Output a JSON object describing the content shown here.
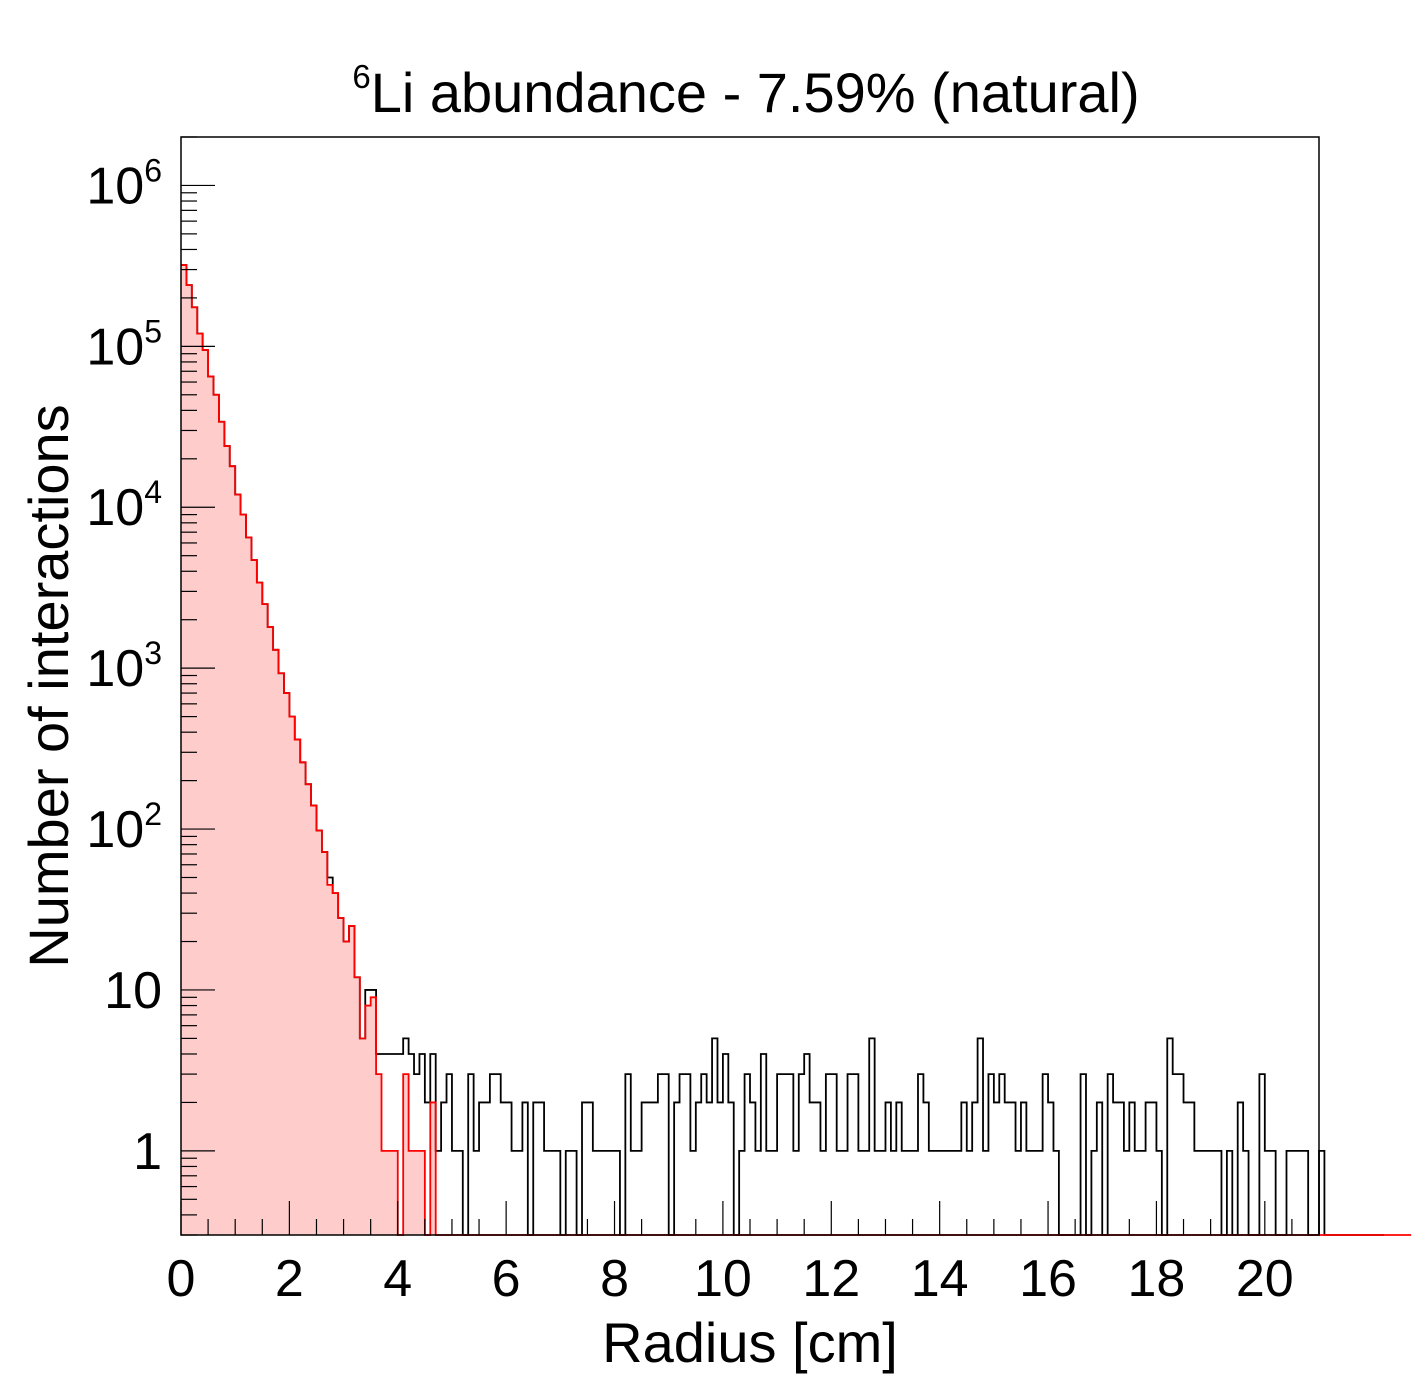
{
  "chart_data": {
    "type": "histogram",
    "title": {
      "superscript": "6",
      "text": "Li abundance - 7.59% (natural)"
    },
    "xlabel": "Radius [cm]",
    "ylabel": "Number of interactions",
    "xlim": [
      0,
      21
    ],
    "ylim": [
      0.3,
      2000000
    ],
    "yscale": "log",
    "bin_width": 0.1,
    "x_ticks": [
      {
        "value": 0,
        "label": "0"
      },
      {
        "value": 2,
        "label": "2"
      },
      {
        "value": 4,
        "label": "4"
      },
      {
        "value": 6,
        "label": "6"
      },
      {
        "value": 8,
        "label": "8"
      },
      {
        "value": 10,
        "label": "10"
      },
      {
        "value": 12,
        "label": "12"
      },
      {
        "value": 14,
        "label": "14"
      },
      {
        "value": 16,
        "label": "16"
      },
      {
        "value": 18,
        "label": "18"
      },
      {
        "value": 20,
        "label": "20"
      }
    ],
    "y_ticks": [
      {
        "value": 1,
        "base": "1",
        "exp": ""
      },
      {
        "value": 10,
        "base": "10",
        "exp": ""
      },
      {
        "value": 100,
        "base": "10",
        "exp": "2"
      },
      {
        "value": 1000,
        "base": "10",
        "exp": "3"
      },
      {
        "value": 10000,
        "base": "10",
        "exp": "4"
      },
      {
        "value": 100000,
        "base": "10",
        "exp": "5"
      },
      {
        "value": 1000000,
        "base": "10",
        "exp": "6"
      }
    ],
    "series": [
      {
        "color": "#000000",
        "fill": "none",
        "counts": [
          320000,
          240000,
          175000,
          120000,
          95000,
          65000,
          50000,
          34000,
          24000,
          18000,
          12000,
          9000,
          6500,
          4700,
          3400,
          2500,
          1800,
          1300,
          930,
          700,
          500,
          360,
          260,
          190,
          140,
          98,
          72,
          50,
          40,
          28,
          20,
          25,
          12,
          5,
          10,
          10,
          4,
          4,
          4,
          4,
          4,
          5,
          4,
          3,
          4,
          2,
          4,
          1,
          2,
          3,
          1,
          1,
          0,
          3,
          1,
          2,
          2,
          3,
          3,
          2,
          2,
          1,
          1,
          2,
          0,
          2,
          2,
          1,
          1,
          1,
          0,
          1,
          1,
          0,
          2,
          2,
          1,
          1,
          1,
          1,
          1,
          0,
          3,
          1,
          1,
          2,
          2,
          2,
          3,
          3,
          0,
          2,
          3,
          3,
          1,
          2,
          3,
          2,
          5,
          2,
          4,
          2,
          0,
          1,
          3,
          2,
          1,
          4,
          1,
          1,
          3,
          3,
          3,
          1,
          3,
          4,
          2,
          2,
          1,
          3,
          3,
          1,
          1,
          3,
          3,
          1,
          1,
          5,
          1,
          1,
          2,
          1,
          2,
          1,
          1,
          1,
          3,
          2,
          1,
          1,
          1,
          1,
          1,
          1,
          2,
          1,
          2,
          5,
          1,
          3,
          2,
          3,
          2,
          2,
          1,
          2,
          1,
          1,
          1,
          3,
          2,
          1,
          0,
          0,
          0,
          0,
          3,
          0,
          1,
          2,
          0,
          3,
          2,
          2,
          1,
          2,
          1,
          1,
          2,
          2,
          1,
          0,
          5,
          3,
          3,
          2,
          2,
          1,
          1,
          1,
          1,
          1,
          0,
          1,
          0,
          2,
          1,
          0,
          0,
          3,
          1,
          1,
          0,
          0,
          1,
          1,
          1,
          1,
          0,
          0,
          1,
          0,
          0,
          0,
          0,
          0,
          0,
          0,
          0,
          0,
          0,
          0
        ]
      },
      {
        "color": "#ff0000",
        "fill": "#ffcccc",
        "counts": [
          320000,
          240000,
          175000,
          120000,
          95000,
          65000,
          50000,
          34000,
          24000,
          18000,
          12000,
          9000,
          6500,
          4700,
          3400,
          2500,
          1800,
          1300,
          930,
          700,
          500,
          360,
          260,
          190,
          140,
          98,
          72,
          45,
          40,
          28,
          20,
          25,
          12,
          5,
          8,
          9,
          3,
          1,
          1,
          1,
          0,
          3,
          1,
          1,
          1,
          0,
          2,
          0,
          0,
          0,
          0,
          0,
          0,
          0,
          0,
          0,
          0,
          0,
          0,
          0,
          0,
          0,
          0,
          0,
          0,
          0,
          0,
          0,
          0,
          0,
          0,
          0,
          0,
          0,
          0,
          0,
          0,
          0,
          0,
          0,
          0,
          0,
          0,
          0,
          0,
          0,
          0,
          0,
          0,
          0,
          0,
          0,
          0,
          0,
          0,
          0,
          0,
          0,
          0,
          0,
          0,
          0,
          0,
          0,
          0,
          0,
          0,
          0,
          0,
          0,
          0,
          0,
          0,
          0,
          0,
          0,
          0,
          0,
          0,
          0,
          0,
          0,
          0,
          0,
          0,
          0,
          0,
          0,
          0,
          0,
          0,
          0,
          0,
          0,
          0,
          0,
          0,
          0,
          0,
          0,
          0,
          0,
          0,
          0,
          0,
          0,
          0,
          0,
          0,
          0,
          0,
          0,
          0,
          0,
          0,
          0,
          0,
          0,
          0,
          0,
          0,
          0,
          0,
          0,
          0,
          0,
          0,
          0,
          0,
          0,
          0,
          0,
          0,
          0,
          0,
          0,
          0,
          0,
          0,
          0,
          0,
          0,
          0,
          0,
          0,
          0,
          0,
          0,
          0,
          0,
          0,
          0,
          0,
          0,
          0,
          0,
          0,
          0,
          0,
          0,
          0,
          0,
          0,
          0,
          0,
          0,
          0,
          0,
          0,
          0,
          0,
          0,
          0,
          0,
          0,
          0,
          0,
          0,
          0,
          0,
          0,
          0,
          0,
          0,
          0,
          0,
          0
        ]
      }
    ]
  }
}
